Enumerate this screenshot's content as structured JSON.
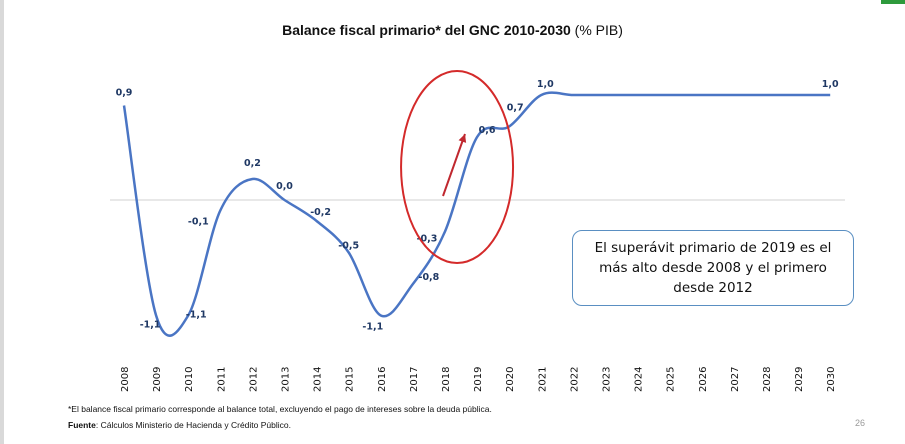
{
  "title": {
    "main": "Balance fiscal primario* del GNC 2010-2030",
    "unit": "(% PIB)"
  },
  "callout": {
    "text": "El superávit primario de 2019 es el más alto desde 2008 y el primero desde 2012"
  },
  "footnote": "*El balance  fiscal primario corresponde al balance total, excluyendo el pago de intereses sobre la deuda pública.",
  "source": {
    "label": "Fuente",
    "text": ": Cálculos Ministerio de Hacienda y Crédito Público."
  },
  "page_number": "26",
  "colors": {
    "line": "#4a75c4",
    "labels": "#1f3864",
    "highlight_ellipse": "#d42a2a",
    "arrow": "#c0282f",
    "zero_line": "#d0d0d0",
    "callout_border": "#5a8fc2"
  },
  "chart_data": {
    "type": "line",
    "title": "Balance fiscal primario* del GNC 2010-2030 (% PIB)",
    "xlabel": "",
    "ylabel": "",
    "x": [
      "2008",
      "2009",
      "2010",
      "2011",
      "2012",
      "2013",
      "2014",
      "2015",
      "2016",
      "2017",
      "2018",
      "2019",
      "2020",
      "2021",
      "2022",
      "2023",
      "2024",
      "2025",
      "2026",
      "2027",
      "2028",
      "2029",
      "2030"
    ],
    "series": [
      {
        "name": "",
        "values": [
          0.9,
          -1.1,
          -1.1,
          -0.1,
          0.2,
          0.0,
          -0.2,
          -0.5,
          -1.1,
          -0.8,
          -0.3,
          0.6,
          0.7,
          1.0,
          1.0,
          1.0,
          1.0,
          1.0,
          1.0,
          1.0,
          1.0,
          1.0,
          1.0
        ]
      }
    ],
    "point_labels": [
      {
        "x": "2008",
        "text": "0,9"
      },
      {
        "x": "2009",
        "text": "-1,1"
      },
      {
        "x": "2010",
        "text": "-1,1"
      },
      {
        "x": "2011",
        "text": "-0,1"
      },
      {
        "x": "2012",
        "text": "0,2"
      },
      {
        "x": "2013",
        "text": "0,0"
      },
      {
        "x": "2014",
        "text": "-0,2"
      },
      {
        "x": "2015",
        "text": "-0,5"
      },
      {
        "x": "2016",
        "text": "-1,1"
      },
      {
        "x": "2017",
        "text": "-0,8"
      },
      {
        "x": "2018",
        "text": "-0,3"
      },
      {
        "x": "2019",
        "text": "0,6"
      },
      {
        "x": "2020",
        "text": "0,7"
      },
      {
        "x": "2021",
        "text": "1,0"
      },
      {
        "x": "2030",
        "text": "1,0"
      }
    ],
    "ylim": [
      -1.2,
      1.0
    ],
    "grid": false,
    "zero_line": true,
    "highlight": {
      "from": "2018",
      "to": "2019",
      "shape": "ellipse",
      "arrow": true
    }
  }
}
